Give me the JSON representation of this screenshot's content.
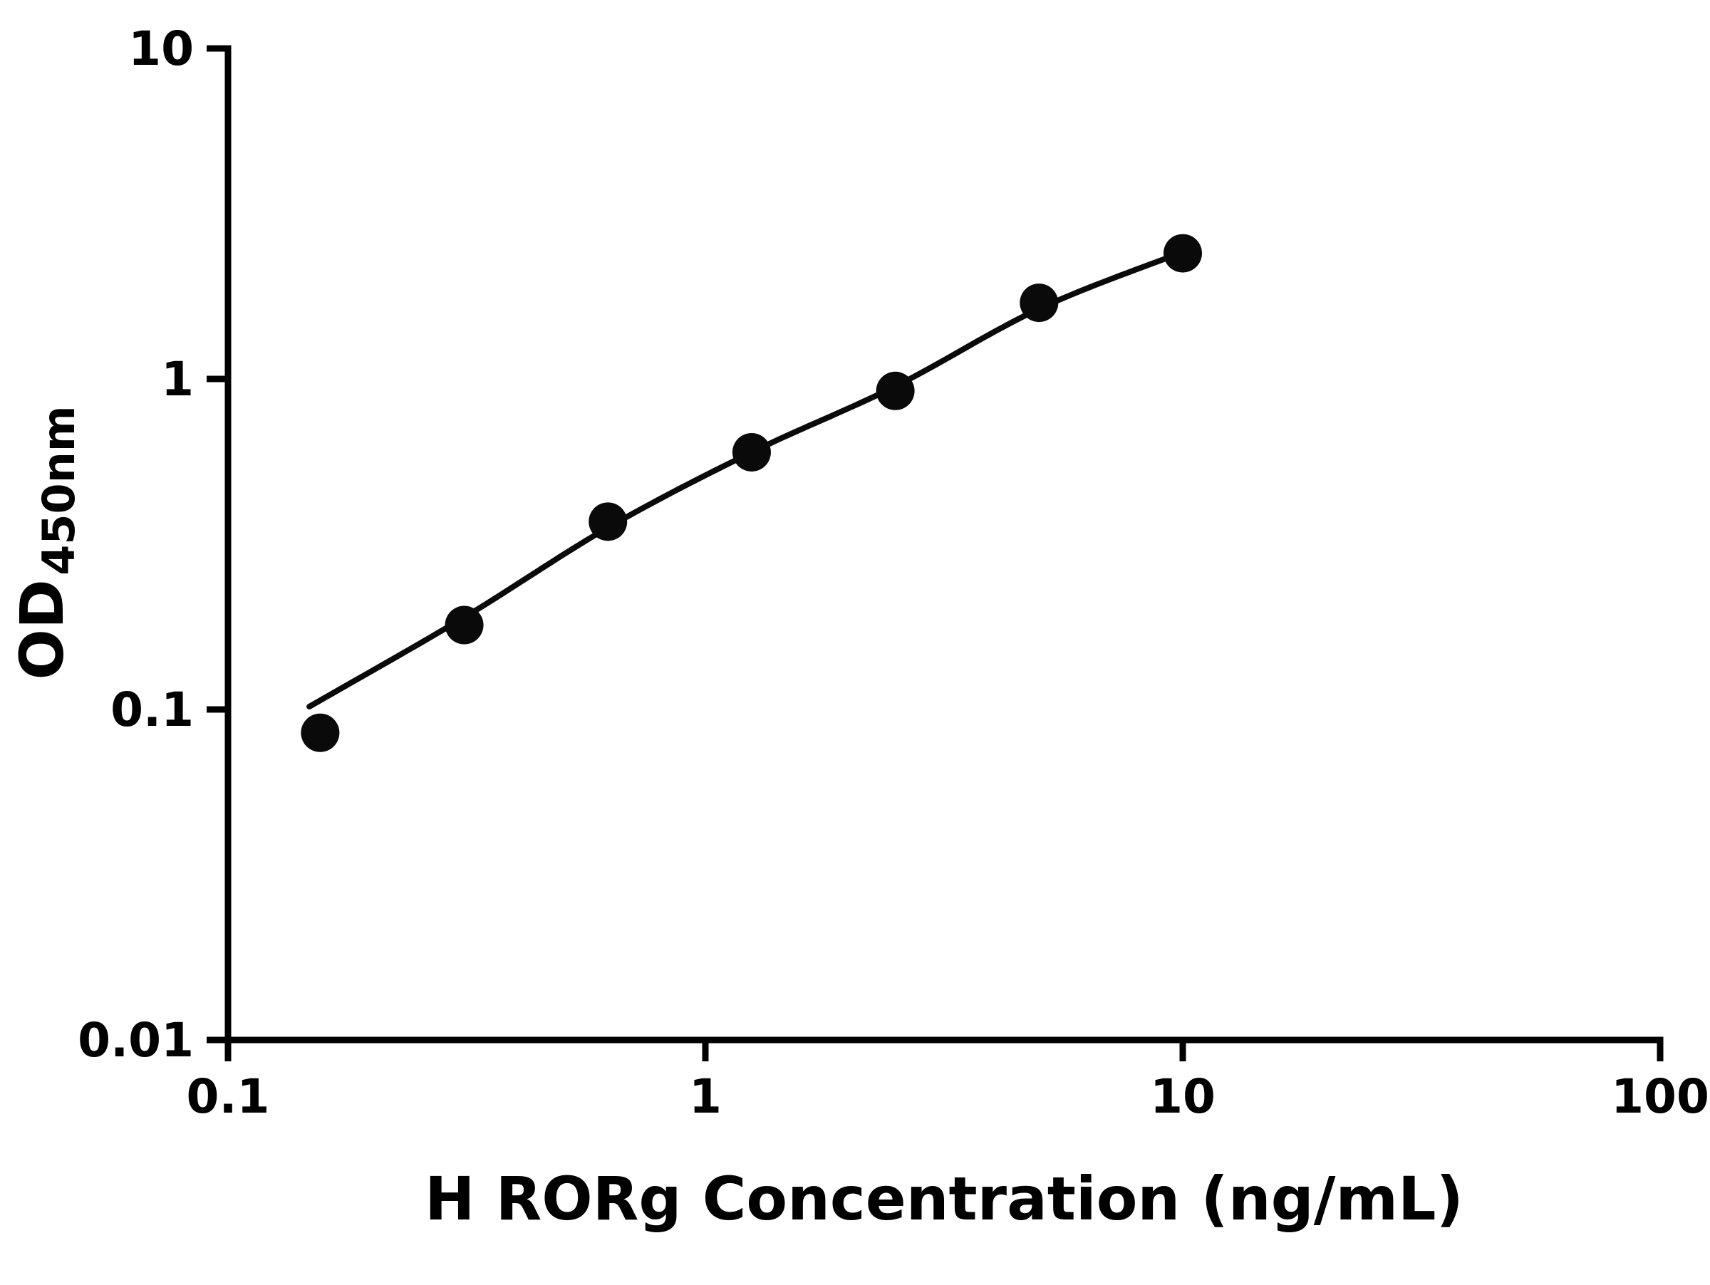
{
  "page": {
    "background": "#ffffff"
  },
  "chart_data": {
    "type": "scatter",
    "title": "",
    "xlabel": "H RORg Concentration (ng/mL)",
    "ylabel_main": "OD",
    "ylabel_sub": "450nm",
    "x_scale": "log",
    "y_scale": "log",
    "xlim": [
      0.1,
      100
    ],
    "ylim": [
      0.01,
      10
    ],
    "x_ticks": [
      0.1,
      1,
      10,
      100
    ],
    "x_tick_labels": [
      "0.1",
      "1",
      "10",
      "100"
    ],
    "y_ticks": [
      0.01,
      0.1,
      1,
      10
    ],
    "y_tick_labels": [
      "0.01",
      "0.1",
      "1",
      "10"
    ],
    "grid": false,
    "legend": "none",
    "marker_color": "#0a0a0a",
    "line_color": "#0a0a0a",
    "axis_color": "#000000",
    "points": {
      "x": [
        0.156,
        0.3125,
        0.625,
        1.25,
        2.5,
        5,
        10
      ],
      "y": [
        0.085,
        0.18,
        0.37,
        0.6,
        0.92,
        1.7,
        2.4
      ]
    },
    "fit_curve": {
      "x": [
        0.148,
        0.3125,
        0.625,
        1.25,
        2.5,
        5,
        10
      ],
      "y": [
        0.102,
        0.19,
        0.355,
        0.6,
        0.95,
        1.63,
        2.42
      ]
    }
  }
}
